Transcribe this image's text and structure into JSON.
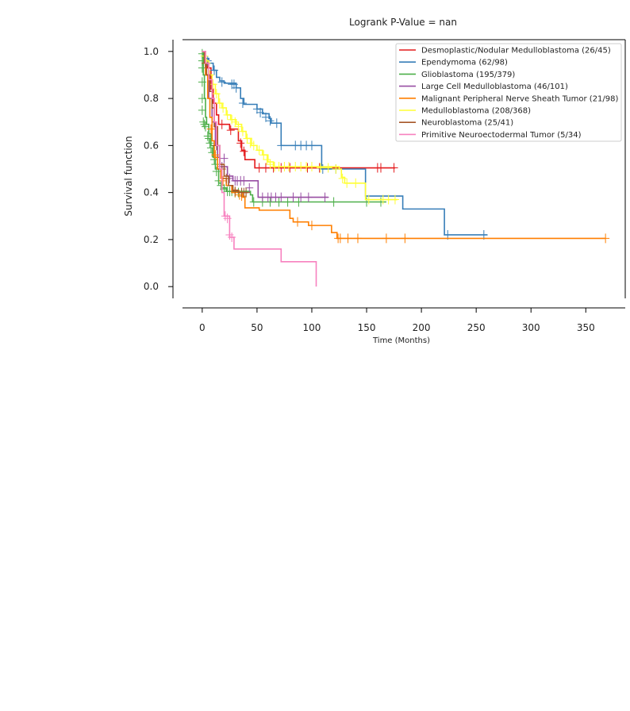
{
  "chart_data": {
    "type": "line",
    "subtype": "kaplan-meier",
    "title": "Logrank P-Value = nan",
    "xlabel": "Time (Months)",
    "ylabel": "Survival function",
    "xlim": [
      -18,
      386
    ],
    "ylim": [
      -0.05,
      1.05
    ],
    "xticks": [
      0,
      50,
      100,
      150,
      200,
      250,
      300,
      350
    ],
    "yticks": [
      0.0,
      0.2,
      0.4,
      0.6,
      0.8,
      1.0
    ],
    "ytick_labels": [
      "0.0",
      "0.2",
      "0.4",
      "0.6",
      "0.8",
      "1.0"
    ],
    "grid": false,
    "legend_position": "top-right",
    "series": [
      {
        "name": "Desmoplastic/Nodular Medulloblastoma (26/45)",
        "color": "#e41a1c",
        "steps": [
          [
            0,
            1.0
          ],
          [
            3,
            0.96
          ],
          [
            5,
            0.93
          ],
          [
            8,
            0.84
          ],
          [
            10,
            0.78
          ],
          [
            13,
            0.73
          ],
          [
            15,
            0.69
          ],
          [
            25,
            0.67
          ],
          [
            33,
            0.62
          ],
          [
            36,
            0.58
          ],
          [
            39,
            0.54
          ],
          [
            48,
            0.505
          ],
          [
            176,
            0.505
          ]
        ],
        "censors": [
          [
            18,
            0.69
          ],
          [
            26,
            0.665
          ],
          [
            35,
            0.61
          ],
          [
            38,
            0.575
          ],
          [
            52,
            0.505
          ],
          [
            58,
            0.505
          ],
          [
            65,
            0.505
          ],
          [
            72,
            0.505
          ],
          [
            80,
            0.505
          ],
          [
            96,
            0.505
          ],
          [
            107,
            0.505
          ],
          [
            160,
            0.505
          ],
          [
            163,
            0.505
          ],
          [
            175,
            0.505
          ]
        ]
      },
      {
        "name": "Ependymoma (62/98)",
        "color": "#377eb8",
        "steps": [
          [
            0,
            1.0
          ],
          [
            3,
            0.97
          ],
          [
            6,
            0.95
          ],
          [
            10,
            0.92
          ],
          [
            13,
            0.89
          ],
          [
            16,
            0.875
          ],
          [
            20,
            0.865
          ],
          [
            31,
            0.845
          ],
          [
            35,
            0.8
          ],
          [
            38,
            0.775
          ],
          [
            50,
            0.755
          ],
          [
            55,
            0.735
          ],
          [
            61,
            0.715
          ],
          [
            63,
            0.695
          ],
          [
            72,
            0.6
          ],
          [
            108,
            0.6
          ],
          [
            109,
            0.5
          ],
          [
            148,
            0.5
          ],
          [
            149,
            0.385
          ],
          [
            182,
            0.385
          ],
          [
            183,
            0.33
          ],
          [
            220,
            0.33
          ],
          [
            221,
            0.22
          ],
          [
            260,
            0.22
          ]
        ],
        "censors": [
          [
            5,
            0.96
          ],
          [
            11,
            0.92
          ],
          [
            18,
            0.87
          ],
          [
            27,
            0.86
          ],
          [
            29,
            0.86
          ],
          [
            31,
            0.845
          ],
          [
            37,
            0.78
          ],
          [
            50,
            0.755
          ],
          [
            53,
            0.74
          ],
          [
            58,
            0.72
          ],
          [
            62,
            0.705
          ],
          [
            68,
            0.695
          ],
          [
            72,
            0.6
          ],
          [
            85,
            0.6
          ],
          [
            90,
            0.6
          ],
          [
            95,
            0.6
          ],
          [
            100,
            0.6
          ],
          [
            110,
            0.5
          ],
          [
            122,
            0.5
          ],
          [
            224,
            0.22
          ],
          [
            257,
            0.22
          ]
        ]
      },
      {
        "name": "Glioblastoma (195/379)",
        "color": "#4daf4a",
        "steps": [
          [
            0,
            1.0
          ],
          [
            1,
            0.9
          ],
          [
            2,
            0.8
          ],
          [
            3,
            0.72
          ],
          [
            4,
            0.69
          ],
          [
            6,
            0.65
          ],
          [
            8,
            0.6
          ],
          [
            10,
            0.55
          ],
          [
            12,
            0.5
          ],
          [
            15,
            0.44
          ],
          [
            18,
            0.42
          ],
          [
            22,
            0.405
          ],
          [
            44,
            0.39
          ],
          [
            46,
            0.36
          ],
          [
            168,
            0.36
          ]
        ],
        "censors": [
          [
            0,
            0.99
          ],
          [
            0,
            0.96
          ],
          [
            0,
            0.93
          ],
          [
            0,
            0.87
          ],
          [
            0,
            0.8
          ],
          [
            0,
            0.75
          ],
          [
            1,
            0.7
          ],
          [
            2,
            0.69
          ],
          [
            3,
            0.68
          ],
          [
            5,
            0.64
          ],
          [
            6,
            0.63
          ],
          [
            7,
            0.61
          ],
          [
            8,
            0.59
          ],
          [
            9,
            0.57
          ],
          [
            11,
            0.54
          ],
          [
            12,
            0.52
          ],
          [
            13,
            0.49
          ],
          [
            15,
            0.45
          ],
          [
            17,
            0.43
          ],
          [
            20,
            0.415
          ],
          [
            23,
            0.405
          ],
          [
            25,
            0.405
          ],
          [
            27,
            0.405
          ],
          [
            30,
            0.4
          ],
          [
            33,
            0.4
          ],
          [
            36,
            0.4
          ],
          [
            40,
            0.4
          ],
          [
            47,
            0.36
          ],
          [
            55,
            0.36
          ],
          [
            62,
            0.36
          ],
          [
            70,
            0.36
          ],
          [
            78,
            0.36
          ],
          [
            88,
            0.36
          ],
          [
            120,
            0.36
          ],
          [
            150,
            0.36
          ],
          [
            163,
            0.36
          ]
        ]
      },
      {
        "name": "Large Cell Medulloblastoma (46/101)",
        "color": "#984ea3",
        "steps": [
          [
            0,
            1.0
          ],
          [
            3,
            0.9
          ],
          [
            6,
            0.8
          ],
          [
            9,
            0.7
          ],
          [
            12,
            0.6
          ],
          [
            14,
            0.55
          ],
          [
            16,
            0.51
          ],
          [
            23,
            0.47
          ],
          [
            28,
            0.45
          ],
          [
            50,
            0.45
          ],
          [
            51,
            0.38
          ],
          [
            115,
            0.38
          ]
        ],
        "censors": [
          [
            18,
            0.51
          ],
          [
            20,
            0.545
          ],
          [
            25,
            0.46
          ],
          [
            30,
            0.45
          ],
          [
            32,
            0.45
          ],
          [
            35,
            0.45
          ],
          [
            38,
            0.45
          ],
          [
            43,
            0.42
          ],
          [
            55,
            0.38
          ],
          [
            60,
            0.38
          ],
          [
            63,
            0.38
          ],
          [
            67,
            0.38
          ],
          [
            72,
            0.38
          ],
          [
            83,
            0.38
          ],
          [
            90,
            0.38
          ],
          [
            97,
            0.38
          ],
          [
            112,
            0.38
          ]
        ]
      },
      {
        "name": "Malignant Peripheral Nerve Sheath Tumor (21/98)",
        "color": "#ff7f00",
        "steps": [
          [
            0,
            1.0
          ],
          [
            3,
            0.9
          ],
          [
            5,
            0.8
          ],
          [
            7,
            0.72
          ],
          [
            9,
            0.62
          ],
          [
            11,
            0.55
          ],
          [
            14,
            0.5
          ],
          [
            17,
            0.46
          ],
          [
            22,
            0.43
          ],
          [
            27,
            0.4
          ],
          [
            37,
            0.38
          ],
          [
            39,
            0.335
          ],
          [
            52,
            0.325
          ],
          [
            78,
            0.325
          ],
          [
            80,
            0.29
          ],
          [
            83,
            0.275
          ],
          [
            97,
            0.26
          ],
          [
            117,
            0.26
          ],
          [
            118,
            0.23
          ],
          [
            123,
            0.205
          ],
          [
            368,
            0.205
          ]
        ],
        "censors": [
          [
            8,
            0.67
          ],
          [
            12,
            0.56
          ],
          [
            19,
            0.45
          ],
          [
            30,
            0.4
          ],
          [
            34,
            0.39
          ],
          [
            36,
            0.385
          ],
          [
            87,
            0.275
          ],
          [
            100,
            0.26
          ],
          [
            124,
            0.205
          ],
          [
            126,
            0.205
          ],
          [
            133,
            0.205
          ],
          [
            142,
            0.205
          ],
          [
            168,
            0.205
          ],
          [
            185,
            0.205
          ],
          [
            368,
            0.205
          ]
        ]
      },
      {
        "name": "Medulloblastoma (208/368)",
        "color": "#ffff33",
        "steps": [
          [
            0,
            1.0
          ],
          [
            3,
            0.96
          ],
          [
            6,
            0.9
          ],
          [
            9,
            0.86
          ],
          [
            12,
            0.82
          ],
          [
            15,
            0.78
          ],
          [
            18,
            0.76
          ],
          [
            22,
            0.73
          ],
          [
            26,
            0.71
          ],
          [
            31,
            0.69
          ],
          [
            36,
            0.66
          ],
          [
            40,
            0.63
          ],
          [
            45,
            0.6
          ],
          [
            50,
            0.58
          ],
          [
            55,
            0.56
          ],
          [
            60,
            0.53
          ],
          [
            65,
            0.51
          ],
          [
            125,
            0.5
          ],
          [
            127,
            0.465
          ],
          [
            130,
            0.44
          ],
          [
            147,
            0.44
          ],
          [
            149,
            0.37
          ],
          [
            178,
            0.37
          ]
        ],
        "censors": [
          [
            2,
            0.98
          ],
          [
            4,
            0.95
          ],
          [
            7,
            0.9
          ],
          [
            10,
            0.86
          ],
          [
            13,
            0.82
          ],
          [
            16,
            0.78
          ],
          [
            19,
            0.76
          ],
          [
            23,
            0.73
          ],
          [
            27,
            0.71
          ],
          [
            30,
            0.7
          ],
          [
            33,
            0.68
          ],
          [
            37,
            0.66
          ],
          [
            41,
            0.63
          ],
          [
            44,
            0.61
          ],
          [
            47,
            0.6
          ],
          [
            52,
            0.58
          ],
          [
            56,
            0.56
          ],
          [
            59,
            0.54
          ],
          [
            62,
            0.52
          ],
          [
            66,
            0.51
          ],
          [
            70,
            0.51
          ],
          [
            75,
            0.51
          ],
          [
            79,
            0.51
          ],
          [
            85,
            0.51
          ],
          [
            90,
            0.51
          ],
          [
            95,
            0.51
          ],
          [
            100,
            0.51
          ],
          [
            108,
            0.505
          ],
          [
            115,
            0.505
          ],
          [
            122,
            0.5
          ],
          [
            128,
            0.46
          ],
          [
            132,
            0.44
          ],
          [
            140,
            0.44
          ],
          [
            152,
            0.37
          ],
          [
            165,
            0.37
          ],
          [
            170,
            0.37
          ],
          [
            176,
            0.37
          ]
        ]
      },
      {
        "name": "Neuroblastoma (25/41)",
        "color": "#a65628",
        "steps": [
          [
            0,
            1.0
          ],
          [
            2,
            0.95
          ],
          [
            4,
            0.9
          ],
          [
            7,
            0.83
          ],
          [
            9,
            0.76
          ],
          [
            11,
            0.68
          ],
          [
            14,
            0.6
          ],
          [
            16,
            0.52
          ],
          [
            20,
            0.47
          ],
          [
            24,
            0.43
          ],
          [
            28,
            0.41
          ],
          [
            33,
            0.4
          ],
          [
            42,
            0.4
          ]
        ],
        "censors": [
          [
            3,
            0.95
          ],
          [
            13,
            0.6
          ],
          [
            18,
            0.5
          ],
          [
            22,
            0.46
          ],
          [
            30,
            0.405
          ],
          [
            36,
            0.4
          ],
          [
            38,
            0.4
          ],
          [
            40,
            0.4
          ]
        ]
      },
      {
        "name": "Primitive Neuroectodermal Tumor (5/34)",
        "color": "#f781bf",
        "steps": [
          [
            0,
            1.0
          ],
          [
            3,
            0.95
          ],
          [
            6,
            0.88
          ],
          [
            9,
            0.8
          ],
          [
            11,
            0.7
          ],
          [
            13,
            0.6
          ],
          [
            16,
            0.5
          ],
          [
            18,
            0.4
          ],
          [
            20,
            0.3
          ],
          [
            25,
            0.21
          ],
          [
            29,
            0.16
          ],
          [
            71,
            0.16
          ],
          [
            72,
            0.106
          ],
          [
            104,
            0.106
          ],
          [
            104,
            0.0
          ]
        ],
        "censors": [
          [
            21,
            0.3
          ],
          [
            23,
            0.29
          ],
          [
            25,
            0.22
          ],
          [
            27,
            0.21
          ]
        ]
      }
    ]
  }
}
